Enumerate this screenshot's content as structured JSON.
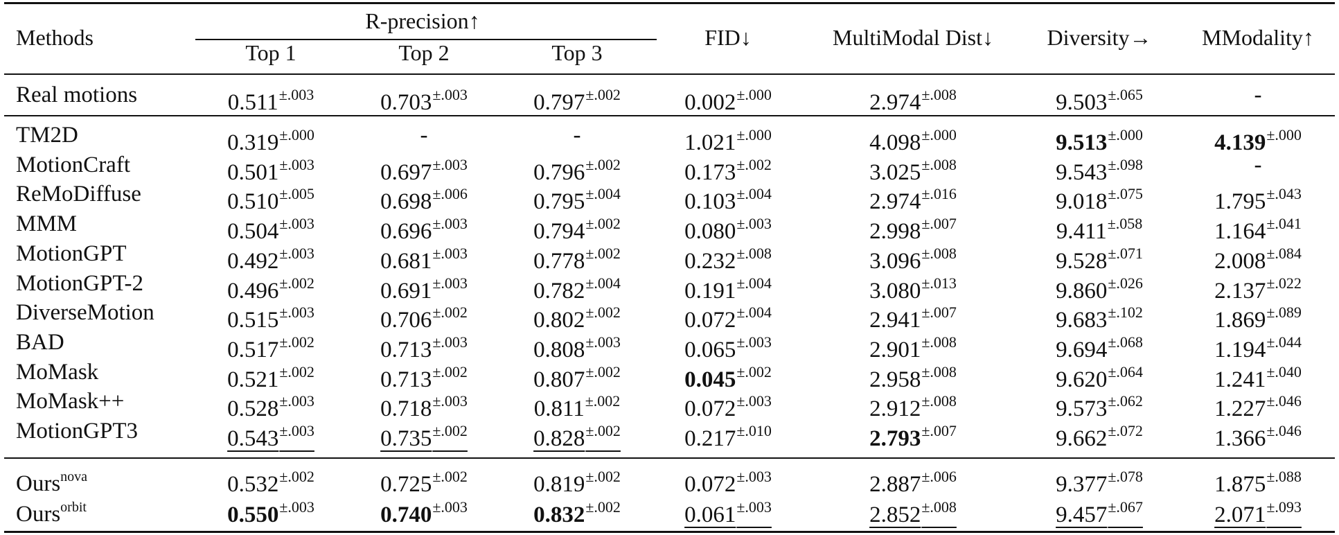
{
  "headers": {
    "methods": "Methods",
    "rprecision": "R-precision↑",
    "top1": "Top 1",
    "top2": "Top 2",
    "top3": "Top 3",
    "fid": "FID↓",
    "mmdist": "MultiModal Dist↓",
    "diversity": "Diversity→",
    "mmodality": "MModality↑"
  },
  "real": {
    "name": "Real motions",
    "cells": [
      {
        "v": "0.511",
        "s": "±.003"
      },
      {
        "v": "0.703",
        "s": "±.003"
      },
      {
        "v": "0.797",
        "s": "±.002"
      },
      {
        "v": "0.002",
        "s": "±.000"
      },
      {
        "v": "2.974",
        "s": "±.008"
      },
      {
        "v": "9.503",
        "s": "±.065"
      },
      {
        "v": "-",
        "s": ""
      }
    ]
  },
  "rows": [
    {
      "name": "TM2D",
      "cells": [
        {
          "v": "0.319",
          "s": "±.000"
        },
        {
          "v": "-",
          "s": ""
        },
        {
          "v": "-",
          "s": ""
        },
        {
          "v": "1.021",
          "s": "±.000"
        },
        {
          "v": "4.098",
          "s": "±.000"
        },
        {
          "v": "9.513",
          "s": "±.000",
          "b": true
        },
        {
          "v": "4.139",
          "s": "±.000",
          "b": true
        }
      ]
    },
    {
      "name": "MotionCraft",
      "cells": [
        {
          "v": "0.501",
          "s": "±.003"
        },
        {
          "v": "0.697",
          "s": "±.003"
        },
        {
          "v": "0.796",
          "s": "±.002"
        },
        {
          "v": "0.173",
          "s": "±.002"
        },
        {
          "v": "3.025",
          "s": "±.008"
        },
        {
          "v": "9.543",
          "s": "±.098"
        },
        {
          "v": "-",
          "s": ""
        }
      ]
    },
    {
      "name": "ReMoDiffuse",
      "cells": [
        {
          "v": "0.510",
          "s": "±.005"
        },
        {
          "v": "0.698",
          "s": "±.006"
        },
        {
          "v": "0.795",
          "s": "±.004"
        },
        {
          "v": "0.103",
          "s": "±.004"
        },
        {
          "v": "2.974",
          "s": "±.016"
        },
        {
          "v": "9.018",
          "s": "±.075"
        },
        {
          "v": "1.795",
          "s": "±.043"
        }
      ]
    },
    {
      "name": "MMM",
      "cells": [
        {
          "v": "0.504",
          "s": "±.003"
        },
        {
          "v": "0.696",
          "s": "±.003"
        },
        {
          "v": "0.794",
          "s": "±.002"
        },
        {
          "v": "0.080",
          "s": "±.003"
        },
        {
          "v": "2.998",
          "s": "±.007"
        },
        {
          "v": "9.411",
          "s": "±.058"
        },
        {
          "v": "1.164",
          "s": "±.041"
        }
      ]
    },
    {
      "name": "MotionGPT",
      "cells": [
        {
          "v": "0.492",
          "s": "±.003"
        },
        {
          "v": "0.681",
          "s": "±.003"
        },
        {
          "v": "0.778",
          "s": "±.002"
        },
        {
          "v": "0.232",
          "s": "±.008"
        },
        {
          "v": "3.096",
          "s": "±.008"
        },
        {
          "v": "9.528",
          "s": "±.071"
        },
        {
          "v": "2.008",
          "s": "±.084"
        }
      ]
    },
    {
      "name": "MotionGPT-2",
      "cells": [
        {
          "v": "0.496",
          "s": "±.002"
        },
        {
          "v": "0.691",
          "s": "±.003"
        },
        {
          "v": "0.782",
          "s": "±.004"
        },
        {
          "v": "0.191",
          "s": "±.004"
        },
        {
          "v": "3.080",
          "s": "±.013"
        },
        {
          "v": "9.860",
          "s": "±.026"
        },
        {
          "v": "2.137",
          "s": "±.022"
        }
      ]
    },
    {
      "name": "DiverseMotion",
      "cells": [
        {
          "v": "0.515",
          "s": "±.003"
        },
        {
          "v": "0.706",
          "s": "±.002"
        },
        {
          "v": "0.802",
          "s": "±.002"
        },
        {
          "v": "0.072",
          "s": "±.004"
        },
        {
          "v": "2.941",
          "s": "±.007"
        },
        {
          "v": "9.683",
          "s": "±.102"
        },
        {
          "v": "1.869",
          "s": "±.089"
        }
      ]
    },
    {
      "name": "BAD",
      "cells": [
        {
          "v": "0.517",
          "s": "±.002"
        },
        {
          "v": "0.713",
          "s": "±.003"
        },
        {
          "v": "0.808",
          "s": "±.003"
        },
        {
          "v": "0.065",
          "s": "±.003"
        },
        {
          "v": "2.901",
          "s": "±.008"
        },
        {
          "v": "9.694",
          "s": "±.068"
        },
        {
          "v": "1.194",
          "s": "±.044"
        }
      ]
    },
    {
      "name": "MoMask",
      "cells": [
        {
          "v": "0.521",
          "s": "±.002"
        },
        {
          "v": "0.713",
          "s": "±.002"
        },
        {
          "v": "0.807",
          "s": "±.002"
        },
        {
          "v": "0.045",
          "s": "±.002",
          "b": true
        },
        {
          "v": "2.958",
          "s": "±.008"
        },
        {
          "v": "9.620",
          "s": "±.064"
        },
        {
          "v": "1.241",
          "s": "±.040"
        }
      ]
    },
    {
      "name": "MoMask++",
      "cells": [
        {
          "v": "0.528",
          "s": "±.003"
        },
        {
          "v": "0.718",
          "s": "±.003"
        },
        {
          "v": "0.811",
          "s": "±.002"
        },
        {
          "v": "0.072",
          "s": "±.003"
        },
        {
          "v": "2.912",
          "s": "±.008"
        },
        {
          "v": "9.573",
          "s": "±.062"
        },
        {
          "v": "1.227",
          "s": "±.046"
        }
      ]
    },
    {
      "name": "MotionGPT3",
      "cells": [
        {
          "v": "0.543",
          "s": "±.003",
          "u": true
        },
        {
          "v": "0.735",
          "s": "±.002",
          "u": true
        },
        {
          "v": "0.828",
          "s": "±.002",
          "u": true
        },
        {
          "v": "0.217",
          "s": "±.010"
        },
        {
          "v": "2.793",
          "s": "±.007",
          "b": true
        },
        {
          "v": "9.662",
          "s": "±.072"
        },
        {
          "v": "1.366",
          "s": "±.046"
        }
      ]
    }
  ],
  "ours": [
    {
      "name": "Ours",
      "sup": "nova",
      "cells": [
        {
          "v": "0.532",
          "s": "±.002"
        },
        {
          "v": "0.725",
          "s": "±.002"
        },
        {
          "v": "0.819",
          "s": "±.002"
        },
        {
          "v": "0.072",
          "s": "±.003"
        },
        {
          "v": "2.887",
          "s": "±.006"
        },
        {
          "v": "9.377",
          "s": "±.078"
        },
        {
          "v": "1.875",
          "s": "±.088"
        }
      ]
    },
    {
      "name": "Ours",
      "sup": "orbit",
      "cells": [
        {
          "v": "0.550",
          "s": "±.003",
          "b": true
        },
        {
          "v": "0.740",
          "s": "±.003",
          "b": true
        },
        {
          "v": "0.832",
          "s": "±.002",
          "b": true
        },
        {
          "v": "0.061",
          "s": "±.003",
          "u": true
        },
        {
          "v": "2.852",
          "s": "±.008",
          "u": true
        },
        {
          "v": "9.457",
          "s": "±.067",
          "u": true
        },
        {
          "v": "2.071",
          "s": "±.093",
          "u": true
        }
      ]
    }
  ]
}
